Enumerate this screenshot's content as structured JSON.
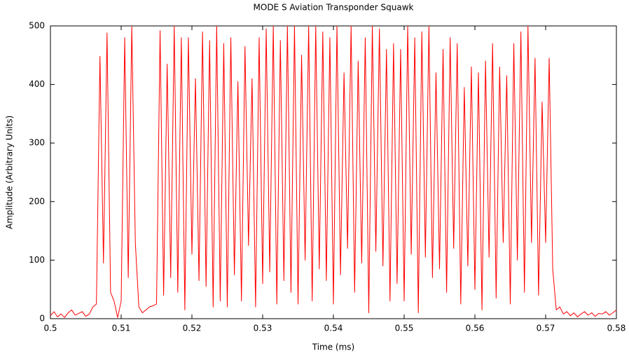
{
  "chart_data": {
    "type": "line",
    "title": "MODE S Aviation Transponder Squawk",
    "x_label": "Time (ms)",
    "y_label": "Amplitude (Arbitrary Units)",
    "xlim": [
      0.5,
      0.58
    ],
    "ylim": [
      0,
      500
    ],
    "xticks": [
      0.5,
      0.51,
      0.52,
      0.53,
      0.54,
      0.55,
      0.56,
      0.57,
      0.58
    ],
    "yticks": [
      0,
      100,
      200,
      300,
      400,
      500
    ],
    "grid": false,
    "x": [
      0.5,
      0.5005,
      0.501,
      0.5015,
      0.502,
      0.5025,
      0.503,
      0.5035,
      0.504,
      0.5045,
      0.505,
      0.5055,
      0.506,
      0.5065,
      0.507,
      0.5075,
      0.508,
      0.5085,
      0.509,
      0.5095,
      0.51,
      0.5105,
      0.511,
      0.5115,
      0.512,
      0.5125,
      0.513,
      0.5135,
      0.514,
      0.5145,
      0.515,
      0.5155,
      0.516,
      0.5165,
      0.517,
      0.5175,
      0.518,
      0.5185,
      0.519,
      0.5195,
      0.52,
      0.5205,
      0.521,
      0.5215,
      0.522,
      0.5225,
      0.523,
      0.5235,
      0.524,
      0.5245,
      0.525,
      0.5255,
      0.526,
      0.5265,
      0.527,
      0.5275,
      0.528,
      0.5285,
      0.529,
      0.5295,
      0.53,
      0.5305,
      0.531,
      0.5315,
      0.532,
      0.5325,
      0.533,
      0.5335,
      0.534,
      0.5345,
      0.535,
      0.5355,
      0.536,
      0.5365,
      0.537,
      0.5375,
      0.538,
      0.5385,
      0.539,
      0.5395,
      0.54,
      0.5405,
      0.541,
      0.5415,
      0.542,
      0.5425,
      0.543,
      0.5435,
      0.544,
      0.5445,
      0.545,
      0.5455,
      0.546,
      0.5465,
      0.547,
      0.5475,
      0.548,
      0.5485,
      0.549,
      0.5495,
      0.55,
      0.5505,
      0.551,
      0.5515,
      0.552,
      0.5525,
      0.553,
      0.5535,
      0.554,
      0.5545,
      0.555,
      0.5555,
      0.556,
      0.5565,
      0.557,
      0.5575,
      0.558,
      0.5585,
      0.559,
      0.5595,
      0.56,
      0.5605,
      0.561,
      0.5615,
      0.562,
      0.5625,
      0.563,
      0.5635,
      0.564,
      0.5645,
      0.565,
      0.5655,
      0.566,
      0.5665,
      0.567,
      0.5675,
      0.568,
      0.5685,
      0.569,
      0.5695,
      0.57,
      0.5705,
      0.571,
      0.5715,
      0.572,
      0.5725,
      0.573,
      0.5735,
      0.574,
      0.5745,
      0.575,
      0.5755,
      0.576,
      0.5765,
      0.577,
      0.5775,
      0.578,
      0.5785,
      0.579,
      0.5795,
      0.58
    ],
    "series": [
      {
        "color": "#ff0000",
        "values": [
          5,
          12,
          3,
          8,
          2,
          10,
          15,
          6,
          9,
          12,
          4,
          8,
          20,
          25,
          448,
          95,
          488,
          45,
          30,
          2,
          30,
          480,
          70,
          500,
          130,
          20,
          10,
          15,
          20,
          22,
          25,
          492,
          40,
          435,
          70,
          500,
          45,
          480,
          15,
          480,
          110,
          410,
          65,
          490,
          55,
          475,
          20,
          500,
          30,
          470,
          20,
          480,
          75,
          405,
          30,
          465,
          125,
          410,
          20,
          480,
          60,
          495,
          80,
          500,
          25,
          475,
          65,
          500,
          45,
          500,
          25,
          450,
          100,
          500,
          30,
          500,
          85,
          490,
          65,
          480,
          25,
          500,
          75,
          420,
          120,
          500,
          45,
          440,
          95,
          480,
          10,
          500,
          115,
          495,
          90,
          460,
          30,
          470,
          60,
          460,
          30,
          500,
          110,
          480,
          10,
          490,
          105,
          500,
          70,
          420,
          85,
          460,
          45,
          480,
          120,
          470,
          25,
          395,
          90,
          430,
          50,
          420,
          15,
          440,
          105,
          470,
          35,
          430,
          130,
          415,
          25,
          470,
          100,
          490,
          45,
          500,
          130,
          445,
          40,
          370,
          130,
          445,
          85,
          15,
          20,
          8,
          12,
          5,
          10,
          3,
          8,
          12,
          6,
          10,
          4,
          9,
          8,
          12,
          6,
          10,
          15
        ]
      }
    ]
  }
}
